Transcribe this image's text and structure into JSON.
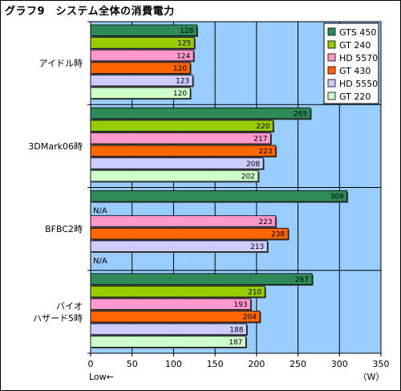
{
  "chart_data": {
    "type": "bar",
    "orientation": "horizontal",
    "title": "グラフ9　システム全体の消費電力",
    "unit_label": "（W）",
    "direction_label": "Low←",
    "xlim": [
      0,
      350
    ],
    "xticks": [
      0,
      50,
      100,
      150,
      200,
      250,
      300,
      350
    ],
    "na_label": "N/A",
    "categories": [
      "アイドル時",
      "3DMark06時",
      "BFBC2時",
      "バイオ\nハザード5時"
    ],
    "series": [
      {
        "name": "GTS 450",
        "color": "#2e8b57",
        "values": [
          128,
          265,
          309,
          267
        ]
      },
      {
        "name": "GT 240",
        "color": "#99cc00",
        "values": [
          125,
          220,
          null,
          210
        ]
      },
      {
        "name": "HD 5570",
        "color": "#ff99cc",
        "values": [
          124,
          217,
          223,
          193
        ]
      },
      {
        "name": "GT 430",
        "color": "#ff6600",
        "values": [
          120,
          223,
          238,
          204
        ]
      },
      {
        "name": "HD 5550",
        "color": "#ccccff",
        "values": [
          123,
          208,
          213,
          188
        ]
      },
      {
        "name": "GT 220",
        "color": "#ccffcc",
        "values": [
          120,
          202,
          null,
          187
        ]
      }
    ],
    "grid": true,
    "legend_position": "top-right",
    "plot_background": "#99ccff"
  }
}
